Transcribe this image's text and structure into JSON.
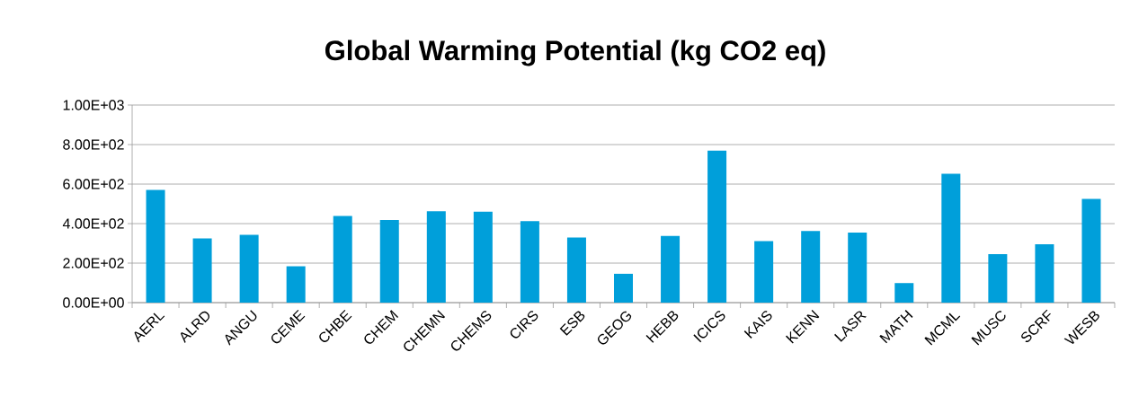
{
  "chart_data": {
    "type": "bar",
    "title": "Global Warming Potential (kg CO2 eq)",
    "categories": [
      "AERL",
      "ALRD",
      "ANGU",
      "CEME",
      "CHBE",
      "CHEM",
      "CHEMN",
      "CHEMS",
      "CIRS",
      "ESB",
      "GEOG",
      "HEBB",
      "ICICS",
      "KAIS",
      "KENN",
      "LASR",
      "MATH",
      "MCML",
      "MUSC",
      "SCRF",
      "WESB"
    ],
    "values": [
      570,
      325,
      343,
      184,
      439,
      418,
      463,
      460,
      413,
      330,
      146,
      337,
      769,
      311,
      363,
      354,
      99,
      652,
      246,
      296,
      525
    ],
    "color": "#009fda",
    "ylim": [
      0,
      1000
    ],
    "yticks": [
      {
        "value": 0,
        "label": "0.00E+00"
      },
      {
        "value": 200,
        "label": "2.00E+02"
      },
      {
        "value": 400,
        "label": "4.00E+02"
      },
      {
        "value": 600,
        "label": "6.00E+02"
      },
      {
        "value": 800,
        "label": "8.00E+02"
      },
      {
        "value": 1000,
        "label": "1.00E+03"
      }
    ],
    "grid": "y"
  }
}
